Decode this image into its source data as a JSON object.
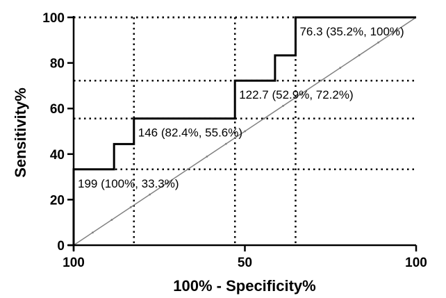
{
  "chart_data": {
    "type": "line",
    "xlabel": "100% - Specificity%",
    "ylabel": "Sensitivity%",
    "xlim": [
      0,
      100
    ],
    "ylim": [
      0,
      100
    ],
    "x_tick_labels": [
      "100",
      "50",
      "100"
    ],
    "y_ticks": [
      0,
      20,
      40,
      60,
      80,
      100
    ],
    "grid": "dotted reference lines at annotated cutoffs",
    "series": [
      {
        "kind": "roc-step",
        "x": [
          0,
          0,
          11.8,
          11.8,
          17.6,
          17.6,
          47.1,
          47.1,
          58.8,
          58.8,
          64.8,
          64.8,
          100
        ],
        "y": [
          0,
          33.3,
          33.3,
          44.4,
          44.4,
          55.6,
          55.6,
          72.2,
          72.2,
          83.3,
          83.3,
          100,
          100
        ]
      },
      {
        "kind": "reference-diagonal",
        "x": [
          0,
          100
        ],
        "y": [
          0,
          100
        ]
      }
    ],
    "annotations": [
      {
        "text": "199 (100%, 33.3%)",
        "x": 0,
        "y": 33.3
      },
      {
        "text": "146 (82.4%, 55.6%)",
        "x": 17.6,
        "y": 55.6
      },
      {
        "text": "122.7 (52.9%, 72.2%)",
        "x": 47.1,
        "y": 72.2
      },
      {
        "text": "76.3 (35.2%, 100%)",
        "x": 64.8,
        "y": 100
      }
    ],
    "colors": {
      "roc": "#000000",
      "diagonal": "#808080",
      "axis": "#000000"
    }
  }
}
